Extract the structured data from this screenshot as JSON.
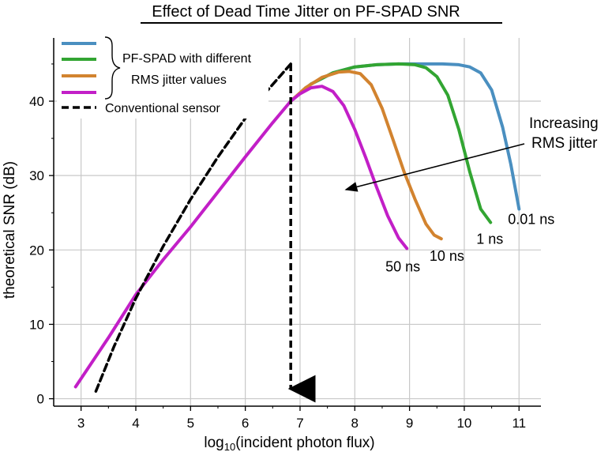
{
  "chart_data": {
    "type": "line",
    "title": "Effect of Dead Time Jitter on PF-SPAD SNR",
    "xlabel_main": "log",
    "xlabel_sub": "10",
    "xlabel_rest": "(incident photon flux)",
    "ylabel": "theoretical SNR (dB)",
    "xlim": [
      2.5,
      11.4
    ],
    "ylim": [
      -1,
      48.5
    ],
    "x_ticks": [
      3,
      4,
      5,
      6,
      7,
      8,
      9,
      10,
      11
    ],
    "y_ticks": [
      0,
      10,
      20,
      30,
      40
    ],
    "grid": true,
    "legend": {
      "entries": [
        "",
        "",
        "",
        "",
        "Conventional sensor"
      ],
      "group_label_line1": "PF-SPAD with different",
      "group_label_line2": "RMS jitter values"
    },
    "series": [
      {
        "name": "0.01 ns",
        "color": "#4a8fc0",
        "style": "solid",
        "x": [
          6.83,
          7.2,
          7.6,
          8.0,
          8.4,
          8.8,
          9.2,
          9.6,
          9.9,
          10.1,
          10.3,
          10.5,
          10.7,
          10.85,
          11.0
        ],
        "y": [
          40,
          42.3,
          43.8,
          44.6,
          44.9,
          45.0,
          45.0,
          45.0,
          44.9,
          44.6,
          43.8,
          41.5,
          36.5,
          31.5,
          25.5
        ]
      },
      {
        "name": "1 ns",
        "color": "#32a532",
        "style": "solid",
        "x": [
          6.83,
          7.2,
          7.6,
          8.0,
          8.4,
          8.8,
          9.1,
          9.3,
          9.5,
          9.7,
          9.9,
          10.1,
          10.3,
          10.48
        ],
        "y": [
          40,
          42.3,
          43.8,
          44.6,
          44.9,
          45.0,
          44.9,
          44.5,
          43.3,
          40.8,
          36.2,
          30.5,
          25.5,
          23.7
        ]
      },
      {
        "name": "10 ns",
        "color": "#d2832f",
        "style": "solid",
        "x": [
          6.83,
          7.1,
          7.4,
          7.7,
          7.9,
          8.1,
          8.3,
          8.5,
          8.7,
          8.9,
          9.1,
          9.3,
          9.45,
          9.58
        ],
        "y": [
          40,
          41.8,
          43.2,
          43.9,
          44.0,
          43.7,
          42.2,
          39.0,
          34.8,
          30.5,
          26.8,
          23.5,
          22.0,
          21.5
        ]
      },
      {
        "name": "50 ns",
        "color": "#c21fc7",
        "style": "solid",
        "x": [
          2.9,
          3.5,
          4.0,
          4.5,
          5.0,
          5.5,
          6.0,
          6.5,
          6.83,
          7.0,
          7.2,
          7.4,
          7.6,
          7.8,
          8.0,
          8.2,
          8.4,
          8.6,
          8.8,
          8.95
        ],
        "y": [
          1.6,
          8.2,
          14.0,
          18.7,
          23.1,
          27.8,
          32.5,
          37.1,
          40.0,
          41.0,
          41.8,
          42.0,
          41.3,
          39.4,
          36.2,
          32.4,
          28.4,
          24.6,
          21.6,
          20.2
        ]
      },
      {
        "name": "Conventional sensor",
        "color": "#000000",
        "style": "dashed",
        "x": [
          3.27,
          3.6,
          4.0,
          4.5,
          5.0,
          5.5,
          6.0,
          6.4,
          6.83
        ],
        "y": [
          1.0,
          7.0,
          13.5,
          20.5,
          26.8,
          32.5,
          37.7,
          41.4,
          45.0
        ]
      }
    ],
    "annotations": {
      "arrow_text_line1": "Increasing",
      "arrow_text_line2": "RMS jitter",
      "labels": [
        "0.01 ns",
        "1 ns",
        "10 ns",
        "50 ns"
      ]
    }
  }
}
